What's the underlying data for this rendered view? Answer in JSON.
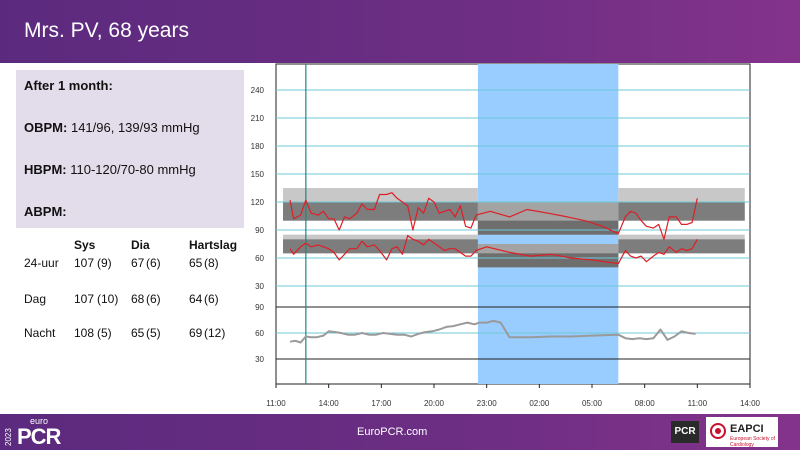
{
  "header": {
    "title": "Mrs. PV, 68 years"
  },
  "info": {
    "heading": "After 1 month:",
    "obpm_label": "OBPM:",
    "obpm_value": "141/96, 139/93 mmHg",
    "hbpm_label": "HBPM:",
    "hbpm_value": "110-120/70-80 mmHg",
    "abpm_label": "ABPM:"
  },
  "stats": {
    "headers": [
      "Sys",
      "Dia",
      "Hartslag"
    ],
    "rows": [
      {
        "label": "24-uur",
        "sys": "107",
        "sys_sd": "(9)",
        "dia": "67",
        "dia_sd": "(6)",
        "hr": "65",
        "hr_sd": "(8)"
      },
      {
        "label": "Dag",
        "sys": "107",
        "sys_sd": "(10)",
        "dia": "68",
        "dia_sd": "(6)",
        "hr": "64",
        "hr_sd": "(6)"
      },
      {
        "label": "Nacht",
        "sys": "108",
        "sys_sd": "(5)",
        "dia": "65",
        "dia_sd": "(5)",
        "hr": "69",
        "hr_sd": "(12)"
      }
    ]
  },
  "chart_data": {
    "type": "line",
    "x_ticks": [
      "11:00",
      "14:00",
      "17:00",
      "20:00",
      "23:00",
      "02:00",
      "05:00",
      "08:00",
      "11:00",
      "14:00"
    ],
    "bp_panel": {
      "y_ticks": [
        30,
        60,
        90,
        120,
        150,
        180,
        210,
        240
      ],
      "ylim": [
        0,
        270
      ]
    },
    "hr_panel": {
      "y_ticks": [
        30,
        60,
        90
      ],
      "ylim": [
        0,
        90
      ]
    },
    "night_shading": {
      "from_hour": 22.5,
      "to_hour": 30.5
    },
    "marker_hour": 12.7,
    "systolic_target_band": {
      "day_outer": [
        100,
        135
      ],
      "day_inner": [
        100,
        120
      ],
      "night_outer": [
        85,
        120
      ],
      "night_inner": [
        85,
        100
      ]
    },
    "diastolic_target_band": {
      "day_outer": [
        65,
        85
      ],
      "day_inner": [
        65,
        80
      ],
      "night_outer": [
        50,
        75
      ],
      "night_inner": [
        50,
        65
      ]
    },
    "series": [
      {
        "name": "Sys",
        "color": "#dd1f26",
        "points": [
          [
            11.8,
            122
          ],
          [
            12.0,
            102
          ],
          [
            12.4,
            106
          ],
          [
            12.7,
            122
          ],
          [
            13.0,
            108
          ],
          [
            13.4,
            106
          ],
          [
            13.7,
            110
          ],
          [
            14.0,
            102
          ],
          [
            14.3,
            102
          ],
          [
            14.6,
            90
          ],
          [
            14.9,
            104
          ],
          [
            15.2,
            102
          ],
          [
            15.6,
            108
          ],
          [
            15.9,
            118
          ],
          [
            16.2,
            112
          ],
          [
            16.6,
            112
          ],
          [
            16.9,
            128
          ],
          [
            17.3,
            128
          ],
          [
            17.6,
            130
          ],
          [
            17.9,
            124
          ],
          [
            18.2,
            120
          ],
          [
            18.5,
            116
          ],
          [
            18.8,
            90
          ],
          [
            19.1,
            114
          ],
          [
            19.4,
            108
          ],
          [
            19.7,
            124
          ],
          [
            20.0,
            120
          ],
          [
            20.3,
            108
          ],
          [
            20.6,
            110
          ],
          [
            20.9,
            112
          ],
          [
            21.2,
            104
          ],
          [
            21.5,
            116
          ],
          [
            21.8,
            94
          ],
          [
            22.1,
            92
          ],
          [
            22.4,
            106
          ],
          [
            23.2,
            110
          ],
          [
            24.3,
            104
          ],
          [
            25.3,
            112
          ],
          [
            26.5,
            108
          ],
          [
            27.6,
            104
          ],
          [
            28.6,
            100
          ],
          [
            29.6,
            94
          ],
          [
            30.5,
            86
          ],
          [
            30.9,
            104
          ],
          [
            31.2,
            110
          ],
          [
            31.5,
            108
          ],
          [
            31.8,
            100
          ],
          [
            32.1,
            94
          ],
          [
            32.5,
            92
          ],
          [
            32.8,
            96
          ],
          [
            33.1,
            80
          ],
          [
            33.4,
            104
          ],
          [
            33.8,
            104
          ],
          [
            34.1,
            96
          ],
          [
            34.4,
            96
          ],
          [
            34.7,
            98
          ],
          [
            35.0,
            124
          ]
        ]
      },
      {
        "name": "Dia",
        "color": "#dd1f26",
        "points": [
          [
            11.8,
            70
          ],
          [
            12.0,
            64
          ],
          [
            12.4,
            72
          ],
          [
            12.7,
            76
          ],
          [
            13.0,
            72
          ],
          [
            13.4,
            74
          ],
          [
            13.7,
            72
          ],
          [
            14.0,
            70
          ],
          [
            14.3,
            66
          ],
          [
            14.6,
            58
          ],
          [
            14.9,
            64
          ],
          [
            15.2,
            70
          ],
          [
            15.6,
            70
          ],
          [
            15.9,
            78
          ],
          [
            16.2,
            72
          ],
          [
            16.6,
            74
          ],
          [
            16.9,
            68
          ],
          [
            17.3,
            58
          ],
          [
            17.6,
            70
          ],
          [
            17.9,
            72
          ],
          [
            18.2,
            64
          ],
          [
            18.5,
            84
          ],
          [
            18.8,
            80
          ],
          [
            19.1,
            78
          ],
          [
            19.4,
            74
          ],
          [
            19.7,
            80
          ],
          [
            20.0,
            76
          ],
          [
            20.3,
            72
          ],
          [
            20.6,
            68
          ],
          [
            20.9,
            70
          ],
          [
            21.2,
            70
          ],
          [
            21.5,
            66
          ],
          [
            21.8,
            62
          ],
          [
            22.1,
            62
          ],
          [
            22.4,
            68
          ],
          [
            23.0,
            72
          ],
          [
            24.3,
            66
          ],
          [
            25.5,
            62
          ],
          [
            26.7,
            64
          ],
          [
            27.8,
            60
          ],
          [
            29.0,
            58
          ],
          [
            30.5,
            54
          ],
          [
            30.9,
            68
          ],
          [
            31.2,
            62
          ],
          [
            31.5,
            60
          ],
          [
            31.8,
            62
          ],
          [
            32.1,
            56
          ],
          [
            32.5,
            62
          ],
          [
            32.8,
            66
          ],
          [
            33.1,
            64
          ],
          [
            33.4,
            72
          ],
          [
            33.8,
            66
          ],
          [
            34.1,
            70
          ],
          [
            34.4,
            68
          ],
          [
            34.7,
            70
          ],
          [
            35.0,
            80
          ]
        ]
      },
      {
        "name": "Hartslag",
        "color": "#9a9a9a",
        "points": [
          [
            11.8,
            50
          ],
          [
            12.1,
            51
          ],
          [
            12.4,
            49
          ],
          [
            12.7,
            56
          ],
          [
            13.0,
            55
          ],
          [
            13.3,
            55
          ],
          [
            13.7,
            57
          ],
          [
            14.0,
            62
          ],
          [
            14.4,
            61
          ],
          [
            14.7,
            60
          ],
          [
            15.1,
            58
          ],
          [
            15.5,
            58
          ],
          [
            15.9,
            60
          ],
          [
            16.3,
            58
          ],
          [
            16.7,
            58
          ],
          [
            17.1,
            60
          ],
          [
            17.5,
            59
          ],
          [
            17.9,
            58
          ],
          [
            18.3,
            58
          ],
          [
            18.7,
            56
          ],
          [
            19.1,
            59
          ],
          [
            19.5,
            61
          ],
          [
            19.9,
            62
          ],
          [
            20.3,
            64
          ],
          [
            20.7,
            67
          ],
          [
            21.1,
            68
          ],
          [
            21.5,
            70
          ],
          [
            21.9,
            72
          ],
          [
            22.3,
            70
          ],
          [
            22.6,
            72
          ],
          [
            23.0,
            72
          ],
          [
            23.4,
            74
          ],
          [
            23.8,
            72
          ],
          [
            24.3,
            55
          ],
          [
            25.5,
            55
          ],
          [
            26.7,
            56
          ],
          [
            27.8,
            56
          ],
          [
            29.0,
            57
          ],
          [
            30.5,
            58
          ],
          [
            30.9,
            54
          ],
          [
            31.3,
            53
          ],
          [
            31.7,
            54
          ],
          [
            32.1,
            53
          ],
          [
            32.5,
            54
          ],
          [
            32.9,
            64
          ],
          [
            33.3,
            52
          ],
          [
            33.7,
            56
          ],
          [
            34.1,
            62
          ],
          [
            34.5,
            60
          ],
          [
            34.9,
            59
          ]
        ]
      }
    ]
  },
  "footer": {
    "site": "EuroPCR.com",
    "year": "2023",
    "brand_small": "euro",
    "brand_big": "PCR",
    "badge_pcr": "PCR",
    "badge_eapci": "EAPCI",
    "badge_eapci_sub": "European Society of Cardiology"
  }
}
